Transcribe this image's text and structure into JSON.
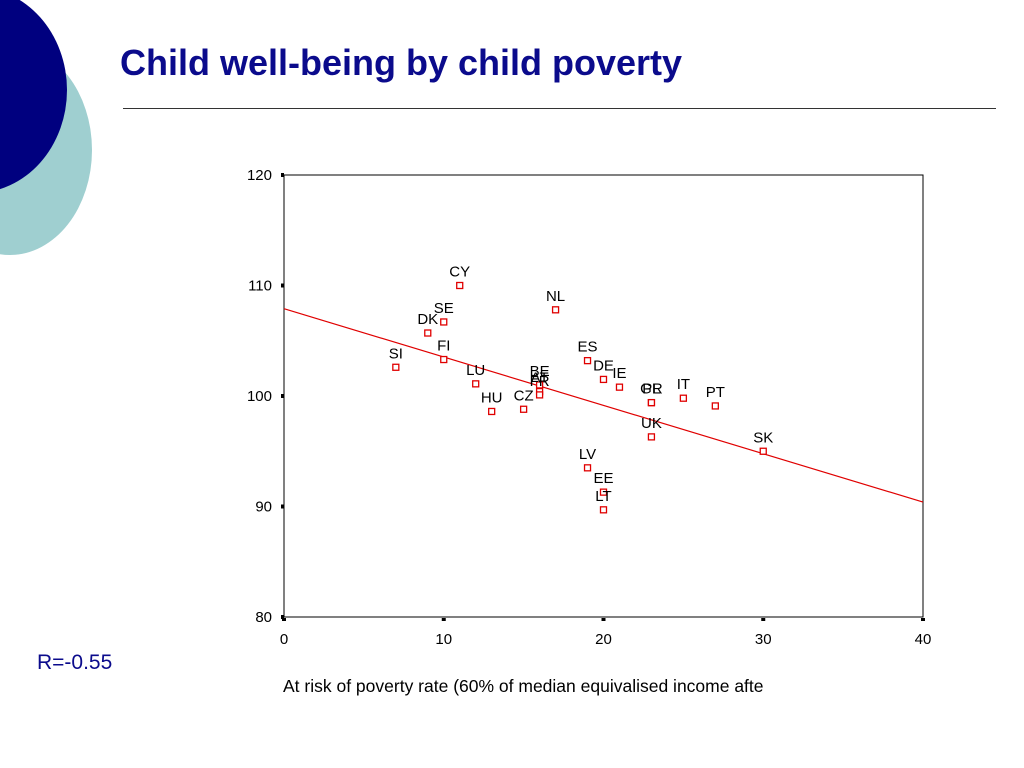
{
  "slide": {
    "title": "Child well-being by child poverty",
    "annotation": "R=-0.55",
    "colors": {
      "title": "#0b0b8c",
      "deco_dark": "#00007f",
      "deco_light": "#9fcfd0",
      "marker": "#e00000",
      "fit_line": "#e00000"
    }
  },
  "chart_data": {
    "type": "scatter",
    "xlabel": "At risk of poverty rate (60% of median equivalised income afte",
    "ylabel": "",
    "xlim": [
      0,
      40
    ],
    "ylim": [
      80,
      120
    ],
    "xticks": [
      0,
      10,
      20,
      30,
      40
    ],
    "yticks": [
      80,
      90,
      100,
      110,
      120
    ],
    "grid": false,
    "marker": "open-square",
    "points": [
      {
        "label": "SI",
        "x": 7,
        "y": 102.6
      },
      {
        "label": "DK",
        "x": 9,
        "y": 105.7
      },
      {
        "label": "SE",
        "x": 10,
        "y": 106.7
      },
      {
        "label": "FI",
        "x": 10,
        "y": 103.3
      },
      {
        "label": "CY",
        "x": 11,
        "y": 110.0
      },
      {
        "label": "LU",
        "x": 12,
        "y": 101.1
      },
      {
        "label": "HU",
        "x": 13,
        "y": 98.6
      },
      {
        "label": "CZ",
        "x": 15,
        "y": 98.8
      },
      {
        "label": "BE",
        "x": 16,
        "y": 101.0
      },
      {
        "label": "AT",
        "x": 16,
        "y": 100.4
      },
      {
        "label": "FR",
        "x": 16,
        "y": 100.1
      },
      {
        "label": "NL",
        "x": 17,
        "y": 107.8
      },
      {
        "label": "ES",
        "x": 19,
        "y": 103.2
      },
      {
        "label": "LV",
        "x": 19,
        "y": 93.5
      },
      {
        "label": "DE",
        "x": 20,
        "y": 101.5
      },
      {
        "label": "EE",
        "x": 20,
        "y": 91.3
      },
      {
        "label": "LT",
        "x": 20,
        "y": 89.7
      },
      {
        "label": "IE",
        "x": 21,
        "y": 100.8
      },
      {
        "label": "GR",
        "x": 23,
        "y": 99.4
      },
      {
        "label": "PL",
        "x": 23,
        "y": 99.4
      },
      {
        "label": "UK",
        "x": 23,
        "y": 96.3
      },
      {
        "label": "IT",
        "x": 25,
        "y": 99.8
      },
      {
        "label": "PT",
        "x": 27,
        "y": 99.1
      },
      {
        "label": "SK",
        "x": 30,
        "y": 95.0
      }
    ],
    "fit_line": {
      "x": [
        0,
        40
      ],
      "y": [
        107.9,
        90.4
      ]
    }
  }
}
